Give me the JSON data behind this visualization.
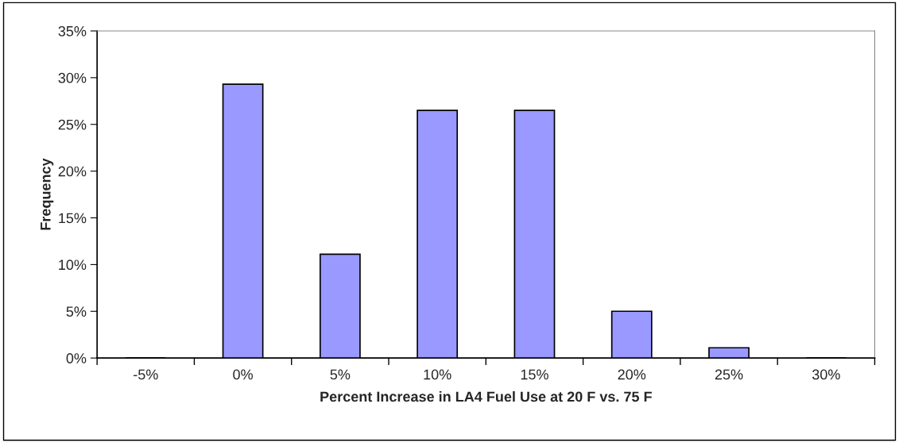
{
  "chart_data": {
    "type": "bar",
    "xlabel": "Percent Increase in LA4 Fuel Use at 20 F vs. 75 F",
    "ylabel": "Frequency",
    "categories": [
      "-5%",
      "0%",
      "5%",
      "10%",
      "15%",
      "20%",
      "25%",
      "30%"
    ],
    "values": [
      0,
      29.3,
      11.1,
      26.5,
      26.5,
      5.0,
      1.1,
      0
    ],
    "color": "#9999ff",
    "ylim": [
      0,
      35
    ],
    "yticks": [
      {
        "value": 0,
        "label": "0%"
      },
      {
        "value": 5,
        "label": "5%"
      },
      {
        "value": 10,
        "label": "10%"
      },
      {
        "value": 15,
        "label": "15%"
      },
      {
        "value": 20,
        "label": "20%"
      },
      {
        "value": 25,
        "label": "25%"
      },
      {
        "value": 30,
        "label": "30%"
      },
      {
        "value": 35,
        "label": "35%"
      }
    ],
    "grid": false,
    "legend": false
  }
}
